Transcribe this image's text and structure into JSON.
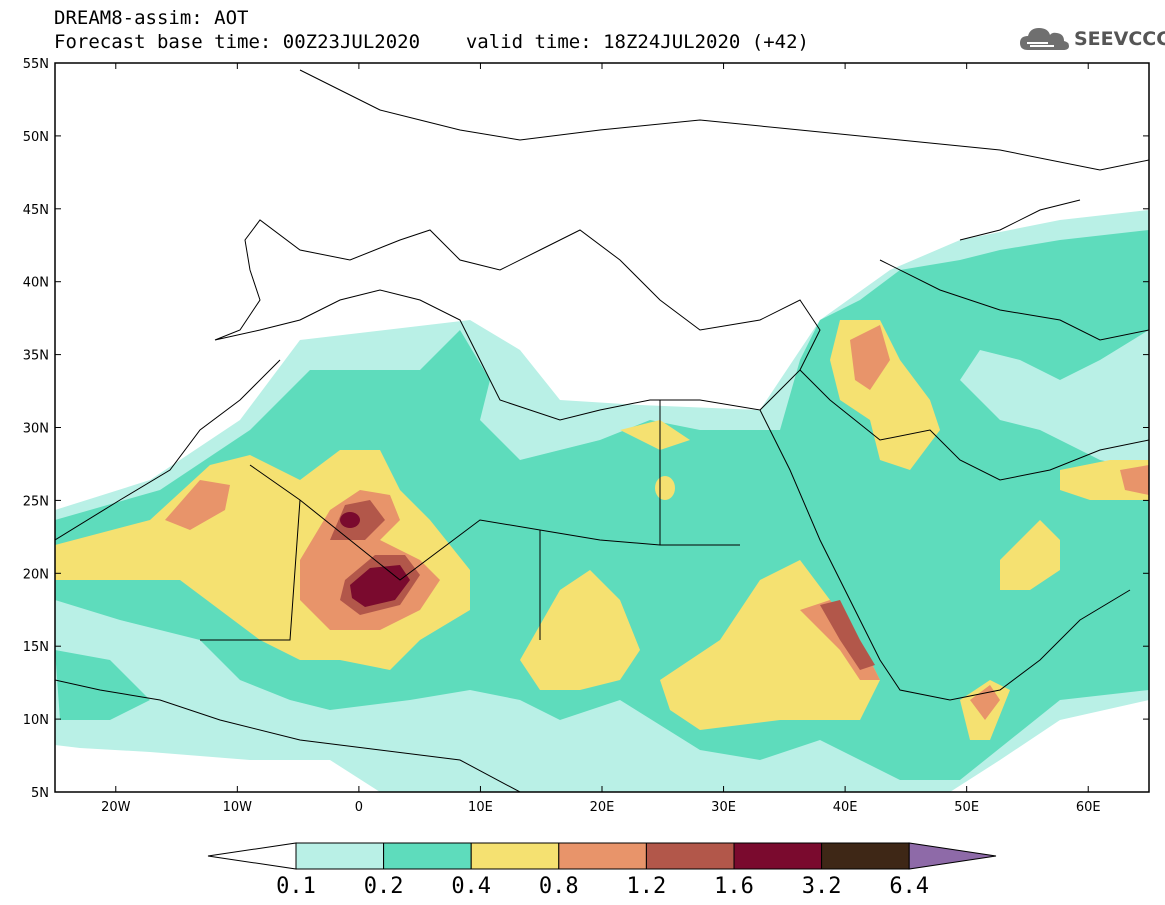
{
  "header": {
    "model_line": "DREAM8-assim: AOT",
    "base_time": "Forecast base time: 00Z23JUL2020",
    "valid_time": "valid time: 18Z24JUL2020 (+42)"
  },
  "logo": {
    "text": "SEEVCCC",
    "icon": "cloud-icon"
  },
  "map": {
    "lon_range": [
      -25,
      65
    ],
    "lat_range": [
      5,
      55
    ],
    "lon_ticks": [
      {
        "v": -20,
        "label": "20W"
      },
      {
        "v": -10,
        "label": "10W"
      },
      {
        "v": 0,
        "label": "0"
      },
      {
        "v": 10,
        "label": "10E"
      },
      {
        "v": 20,
        "label": "20E"
      },
      {
        "v": 30,
        "label": "30E"
      },
      {
        "v": 40,
        "label": "40E"
      },
      {
        "v": 50,
        "label": "50E"
      },
      {
        "v": 60,
        "label": "60E"
      }
    ],
    "lat_ticks": [
      {
        "v": 55,
        "label": "55N"
      },
      {
        "v": 50,
        "label": "50N"
      },
      {
        "v": 45,
        "label": "45N"
      },
      {
        "v": 40,
        "label": "40N"
      },
      {
        "v": 35,
        "label": "35N"
      },
      {
        "v": 30,
        "label": "30N"
      },
      {
        "v": 25,
        "label": "25N"
      },
      {
        "v": 20,
        "label": "20N"
      },
      {
        "v": 15,
        "label": "15N"
      },
      {
        "v": 10,
        "label": "10N"
      },
      {
        "v": 5,
        "label": "5N"
      }
    ]
  },
  "colorbar": {
    "levels": [
      "0.1",
      "0.2",
      "0.4",
      "0.8",
      "1.2",
      "1.6",
      "3.2",
      "6.4"
    ],
    "colors": [
      "#b9f0e6",
      "#5edcbc",
      "#f5e171",
      "#e8946a",
      "#b2574a",
      "#7a0a2e",
      "#3e2716",
      "#8e6aa8"
    ]
  }
}
